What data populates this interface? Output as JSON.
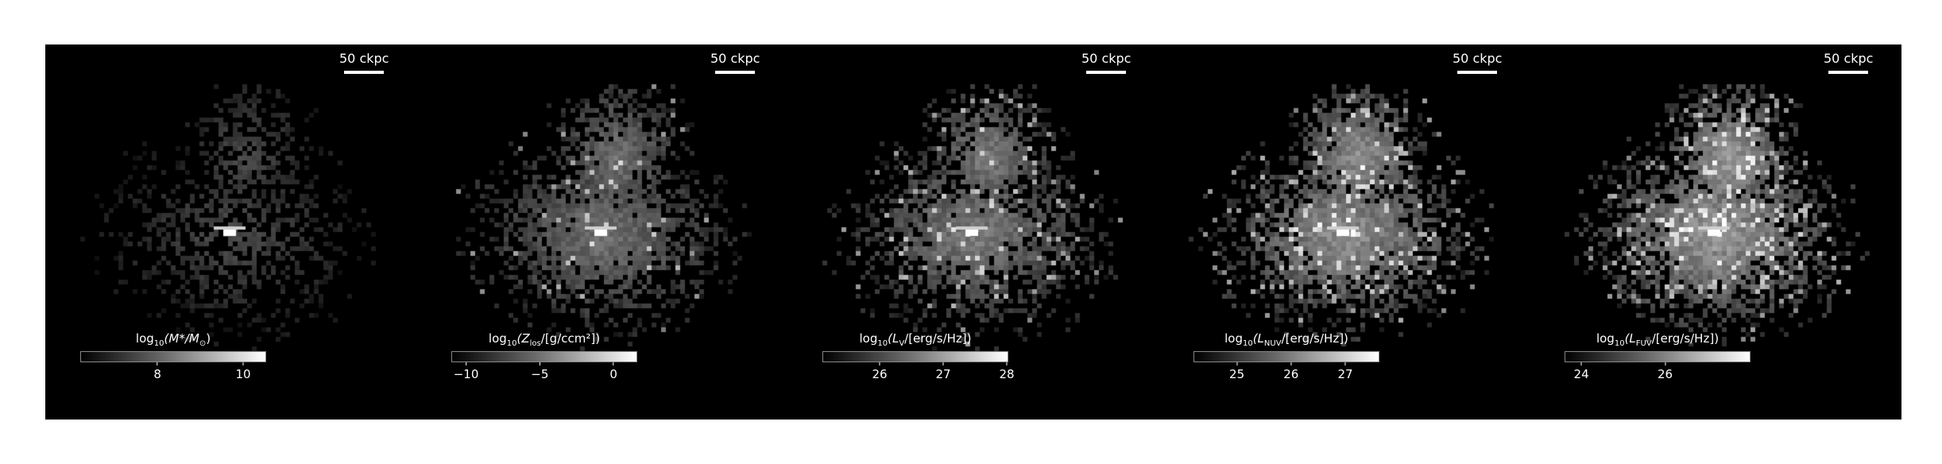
{
  "chart_data": [
    {
      "type": "heatmap",
      "scalebar": "50 ckpc",
      "colorbar": {
        "label_pre": "log",
        "label_sub": "10",
        "label_body": "(M*/M",
        "label_sub2": "⊙",
        "label_post": ")",
        "ticks": [
          8,
          10
        ],
        "range": [
          6.2,
          10.5
        ]
      }
    },
    {
      "type": "heatmap",
      "scalebar": "50 ckpc",
      "colorbar": {
        "label_pre": "log",
        "label_sub": "10",
        "label_body": "(Z",
        "label_sub2": "los",
        "label_post": "/[g/ccm²])",
        "ticks": [
          -10,
          -5,
          0
        ],
        "range": [
          -11,
          1.5
        ]
      }
    },
    {
      "type": "heatmap",
      "scalebar": "50 ckpc",
      "colorbar": {
        "label_pre": "log",
        "label_sub": "10",
        "label_body": "(L",
        "label_sub2": "V",
        "label_post": "/[erg/s/Hz])",
        "ticks": [
          26,
          27,
          28
        ],
        "range": [
          25.1,
          28.0
        ]
      }
    },
    {
      "type": "heatmap",
      "scalebar": "50 ckpc",
      "colorbar": {
        "label_pre": "log",
        "label_sub": "10",
        "label_body": "(L",
        "label_sub2": "NUV",
        "label_post": "/[erg/s/Hz])",
        "ticks": [
          25,
          26,
          27
        ],
        "range": [
          24.2,
          27.6
        ]
      }
    },
    {
      "type": "heatmap",
      "scalebar": "50 ckpc",
      "colorbar": {
        "label_pre": "log",
        "label_sub": "10",
        "label_body": "(L",
        "label_sub2": "FUV",
        "label_post": "/[erg/s/Hz])",
        "ticks": [
          24,
          26
        ],
        "range": [
          23.6,
          28.0
        ]
      }
    }
  ]
}
